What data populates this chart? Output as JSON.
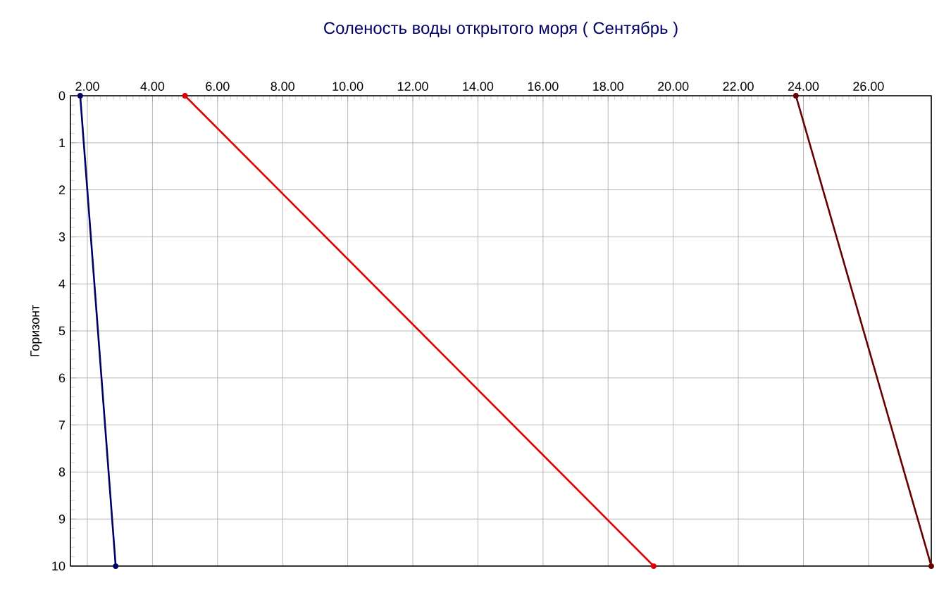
{
  "chart_data": {
    "type": "line",
    "title": "Соленость воды открытого моря    ( Сентябрь )",
    "ylabel": "Горизонт",
    "series": [
      {
        "color": "#000066",
        "x": [
          1.78,
          2.87
        ],
        "values": [
          0,
          10
        ]
      },
      {
        "color": "#dd0000",
        "x": [
          5.0,
          19.4
        ],
        "values": [
          0,
          10
        ]
      },
      {
        "color": "#660000",
        "x": [
          23.77,
          27.93
        ],
        "values": [
          0,
          10
        ]
      }
    ],
    "xlim": [
      1.48,
      27.93
    ],
    "ylim": [
      10,
      0
    ],
    "xticks": [
      {
        "value": 2,
        "label": "2.00"
      },
      {
        "value": 4,
        "label": "4.00"
      },
      {
        "value": 6,
        "label": "6.00"
      },
      {
        "value": 8,
        "label": "8.00"
      },
      {
        "value": 10,
        "label": "10.00"
      },
      {
        "value": 12,
        "label": "12.00"
      },
      {
        "value": 14,
        "label": "14.00"
      },
      {
        "value": 16,
        "label": "16.00"
      },
      {
        "value": 18,
        "label": "18.00"
      },
      {
        "value": 20,
        "label": "20.00"
      },
      {
        "value": 22,
        "label": "22.00"
      },
      {
        "value": 24,
        "label": "24.00"
      },
      {
        "value": 26,
        "label": "26.00"
      }
    ],
    "yticks": [
      0,
      1,
      2,
      3,
      4,
      5,
      6,
      7,
      8,
      9,
      10
    ],
    "grid": true,
    "marker": "circle",
    "line_style": "solid"
  }
}
